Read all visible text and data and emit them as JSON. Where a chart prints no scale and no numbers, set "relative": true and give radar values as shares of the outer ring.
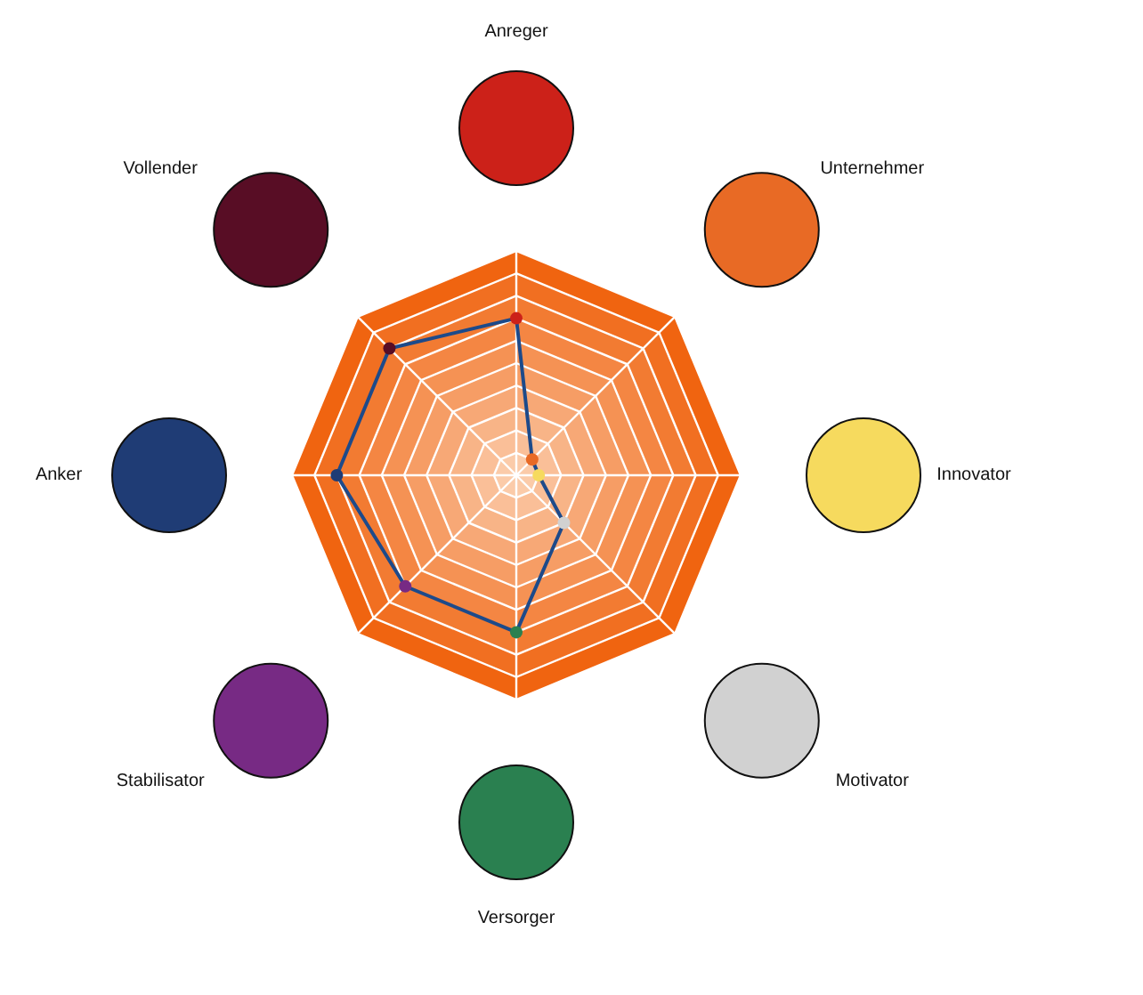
{
  "chart_data": {
    "type": "radar",
    "categories": [
      "Anreger",
      "Unternehmer",
      "Innovator",
      "Motivator",
      "Versorger",
      "Stabilisator",
      "Anker",
      "Vollender"
    ],
    "relative": true,
    "grid": true,
    "marker": "circle",
    "series": [
      {
        "color": "#1d4a8a",
        "colors": [
          "#cc2119",
          "#e86a25",
          "#f6da5e",
          "#d1d1d1",
          "#2a8050",
          "#772a84",
          "#1f3c75",
          "#580d25"
        ],
        "values": [
          0.7,
          0.1,
          0.1,
          0.3,
          0.7,
          0.7,
          0.8,
          0.8
        ]
      }
    ]
  }
}
